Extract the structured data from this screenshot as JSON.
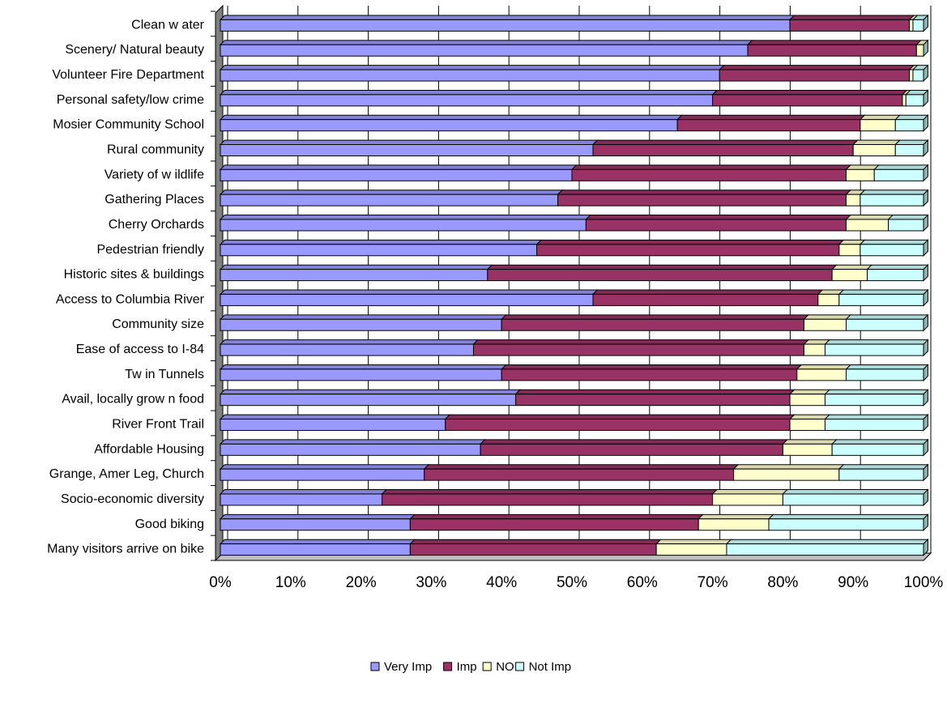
{
  "chart_data": {
    "type": "bar",
    "orientation": "horizontal",
    "stacked": "100%",
    "title": "",
    "xlabel": "",
    "ylabel": "",
    "xlim": [
      0,
      100
    ],
    "x_ticks": [
      "0%",
      "10%",
      "20%",
      "30%",
      "40%",
      "50%",
      "60%",
      "70%",
      "80%",
      "90%",
      "100%"
    ],
    "grid": true,
    "legend_position": "bottom",
    "categories": [
      "Clean w ater",
      "Scenery/ Natural beauty",
      "Volunteer Fire Department",
      "Personal safety/low  crime",
      "Mosier Community School",
      "Rural community",
      "Variety of w ildlife",
      "Gathering Places",
      "Cherry Orchards",
      "Pedestrian friendly",
      "Historic sites & buildings",
      "Access to Columbia River",
      "Community size",
      "Ease of access to I-84",
      "Tw in Tunnels",
      "Avail, locally grow n food",
      "River Front Trail",
      "Affordable Housing",
      "Grange, Amer Leg, Church",
      "Socio-economic diversity",
      "Good biking",
      "Many visitors arrive on bike"
    ],
    "series": [
      {
        "name": "Very Imp",
        "color": "#9999FF",
        "values": [
          81,
          75,
          71,
          70,
          65,
          53,
          50,
          48,
          52,
          45,
          38,
          53,
          40,
          36,
          40,
          42,
          32,
          37,
          29,
          23,
          27,
          27
        ]
      },
      {
        "name": "Imp",
        "color": "#993366",
        "values": [
          17,
          24,
          27,
          27,
          26,
          37,
          39,
          41,
          37,
          43,
          49,
          32,
          43,
          47,
          42,
          39,
          49,
          43,
          44,
          47,
          41,
          35
        ]
      },
      {
        "name": "NO",
        "color": "#FFFFCC",
        "values": [
          0.5,
          1,
          0.5,
          0.5,
          5,
          6,
          4,
          2,
          6,
          3,
          5,
          3,
          6,
          3,
          7,
          5,
          5,
          7,
          15,
          10,
          10,
          10
        ]
      },
      {
        "name": "Not Imp",
        "color": "#CCFFFF",
        "values": [
          1.5,
          0,
          1.5,
          2.5,
          4,
          4,
          7,
          9,
          5,
          9,
          8,
          12,
          11,
          14,
          11,
          14,
          14,
          13,
          12,
          20,
          22,
          28
        ]
      }
    ]
  }
}
